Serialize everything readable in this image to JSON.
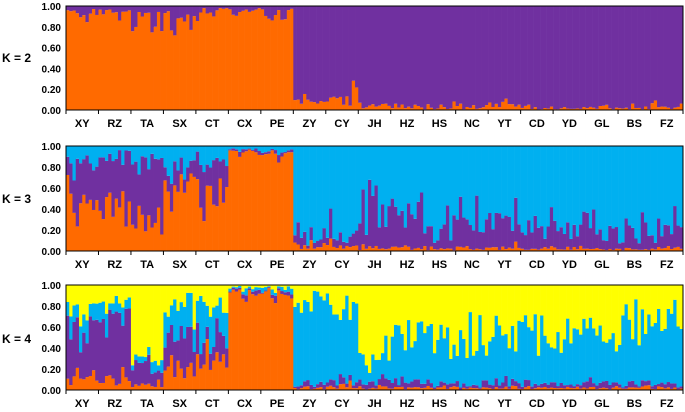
{
  "chart_data": [
    {
      "type": "bar",
      "stacked": true,
      "panel_label": "K = 2",
      "ylim": [
        0,
        1
      ],
      "yticks": [
        "1.00",
        "0.80",
        "0.60",
        "0.40",
        "0.20",
        "0.00"
      ],
      "categories": [
        "XY",
        "RZ",
        "TA",
        "SX",
        "CT",
        "CX",
        "PE",
        "ZY",
        "CY",
        "JH",
        "HZ",
        "HS",
        "NC",
        "YT",
        "CD",
        "YD",
        "GL",
        "BS",
        "FZ"
      ],
      "series": [
        {
          "color": "#ff6a00",
          "values": [
            0.92,
            0.94,
            0.9,
            0.9,
            0.93,
            0.95,
            0.95,
            0.06,
            0.12,
            0.04,
            0.03,
            0.02,
            0.02,
            0.03,
            0.02,
            0.02,
            0.02,
            0.02,
            0.03
          ]
        },
        {
          "color": "#7030a0",
          "values": [
            0.08,
            0.06,
            0.1,
            0.1,
            0.07,
            0.05,
            0.05,
            0.94,
            0.88,
            0.96,
            0.97,
            0.98,
            0.98,
            0.97,
            0.98,
            0.98,
            0.98,
            0.98,
            0.97
          ]
        }
      ]
    },
    {
      "type": "bar",
      "stacked": true,
      "panel_label": "K = 3",
      "ylim": [
        0,
        1
      ],
      "yticks": [
        "1.00",
        "0.80",
        "0.60",
        "0.40",
        "0.20",
        "0.00"
      ],
      "categories": [
        "XY",
        "RZ",
        "TA",
        "SX",
        "CT",
        "CX",
        "PE",
        "ZY",
        "CY",
        "JH",
        "HZ",
        "HS",
        "NC",
        "YT",
        "CD",
        "YD",
        "GL",
        "BS",
        "FZ"
      ],
      "series": [
        {
          "color": "#ff6a00",
          "values": [
            0.45,
            0.4,
            0.3,
            0.65,
            0.55,
            0.95,
            0.93,
            0.03,
            0.04,
            0.03,
            0.03,
            0.02,
            0.02,
            0.03,
            0.02,
            0.03,
            0.02,
            0.02,
            0.03
          ]
        },
        {
          "color": "#7030a0",
          "values": [
            0.4,
            0.5,
            0.55,
            0.15,
            0.3,
            0.02,
            0.02,
            0.07,
            0.1,
            0.35,
            0.28,
            0.2,
            0.2,
            0.25,
            0.2,
            0.22,
            0.2,
            0.15,
            0.18
          ]
        },
        {
          "color": "#00b0f0",
          "values": [
            0.15,
            0.1,
            0.15,
            0.2,
            0.15,
            0.03,
            0.05,
            0.9,
            0.86,
            0.62,
            0.69,
            0.78,
            0.78,
            0.72,
            0.78,
            0.75,
            0.78,
            0.83,
            0.79
          ]
        }
      ]
    },
    {
      "type": "bar",
      "stacked": true,
      "panel_label": "K = 4",
      "ylim": [
        0,
        1
      ],
      "yticks": [
        "1.00",
        "0.80",
        "0.60",
        "0.40",
        "0.20",
        "0.00"
      ],
      "categories": [
        "XY",
        "RZ",
        "TA",
        "SX",
        "CT",
        "CX",
        "PE",
        "ZY",
        "CY",
        "JH",
        "HZ",
        "HS",
        "NC",
        "YT",
        "CD",
        "YD",
        "GL",
        "BS",
        "FZ"
      ],
      "series": [
        {
          "color": "#ff6a00",
          "values": [
            0.1,
            0.1,
            0.05,
            0.2,
            0.3,
            0.92,
            0.93,
            0.02,
            0.03,
            0.02,
            0.02,
            0.02,
            0.02,
            0.02,
            0.02,
            0.02,
            0.02,
            0.02,
            0.02
          ]
        },
        {
          "color": "#7030a0",
          "values": [
            0.55,
            0.6,
            0.2,
            0.3,
            0.25,
            0.03,
            0.02,
            0.03,
            0.05,
            0.05,
            0.05,
            0.04,
            0.04,
            0.05,
            0.04,
            0.04,
            0.04,
            0.03,
            0.04
          ]
        },
        {
          "color": "#00b0f0",
          "values": [
            0.15,
            0.15,
            0.1,
            0.3,
            0.25,
            0.02,
            0.03,
            0.8,
            0.75,
            0.25,
            0.4,
            0.45,
            0.5,
            0.45,
            0.5,
            0.55,
            0.5,
            0.6,
            0.55
          ]
        },
        {
          "color": "#ffff00",
          "values": [
            0.2,
            0.15,
            0.65,
            0.2,
            0.2,
            0.03,
            0.02,
            0.15,
            0.17,
            0.68,
            0.53,
            0.49,
            0.44,
            0.48,
            0.44,
            0.39,
            0.44,
            0.35,
            0.39
          ]
        }
      ]
    }
  ]
}
